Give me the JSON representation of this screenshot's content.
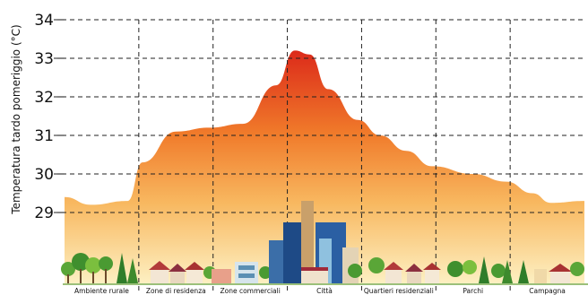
{
  "chart_data": {
    "type": "area",
    "ylabel": "Temperatura tardo pomeriggio (°C)",
    "xlabel": "",
    "ylim": [
      28.2,
      34
    ],
    "yticks": [
      29,
      30,
      31,
      32,
      33,
      34
    ],
    "grid": true,
    "categories": [
      "Ambiente rurale",
      "Zone di residenza",
      "Zone commerciali",
      "Città",
      "Quartieri residenziali",
      "Parchi",
      "Campagna"
    ],
    "curve": {
      "x": [
        0,
        0.35,
        0.85,
        1.05,
        1.5,
        1.95,
        2.4,
        2.85,
        3.1,
        3.3,
        3.55,
        3.95,
        4.25,
        4.6,
        4.95,
        5.5,
        5.95,
        6.3,
        6.55,
        7.0
      ],
      "y": [
        29.4,
        29.2,
        29.3,
        30.3,
        31.1,
        31.2,
        31.3,
        32.3,
        33.2,
        33.1,
        32.2,
        31.4,
        31.0,
        30.6,
        30.2,
        30.0,
        29.8,
        29.5,
        29.25,
        29.3
      ]
    },
    "colors": {
      "fill_top": "#dc2a1a",
      "fill_mid": "#f07a2a",
      "fill_low": "#f8b860",
      "fill_bottom": "#fdf1c4",
      "grid": "#222222"
    }
  }
}
